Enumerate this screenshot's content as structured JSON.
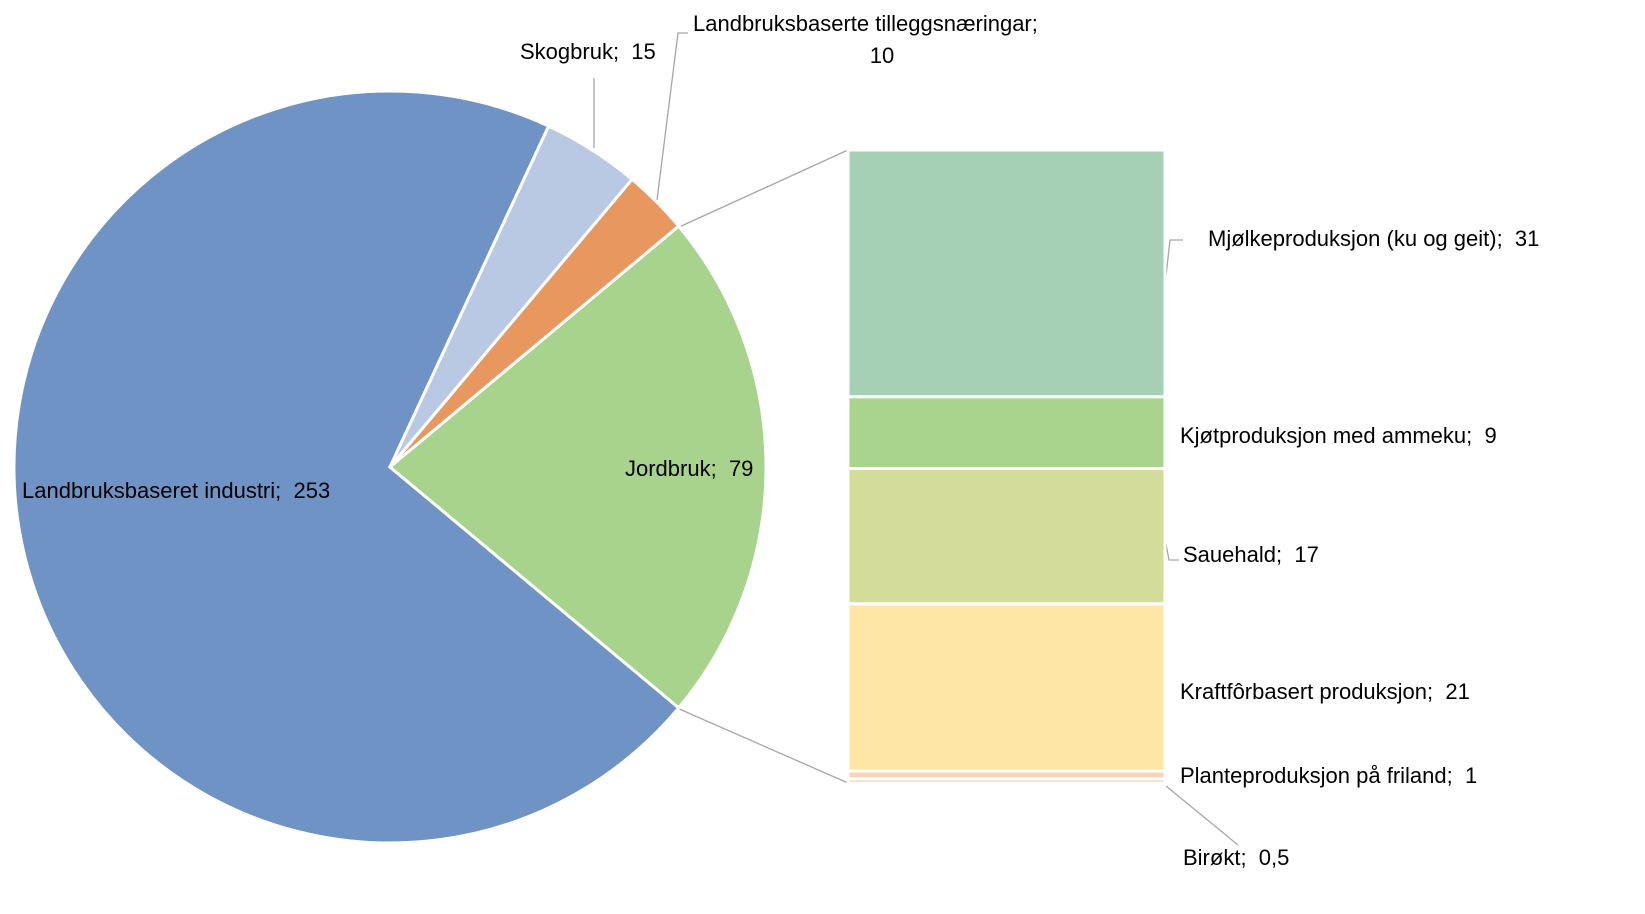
{
  "chart_data": {
    "type": "bar-of-pie",
    "separator": ";  ",
    "pie": {
      "categories": [
        "Landbruksbaseret industri",
        "Skogbruk",
        "Landbruksbaserte tilleggsnæringar",
        "Jordbruk"
      ],
      "values": [
        253,
        15,
        10,
        79
      ],
      "colors": [
        "#7093c6",
        "#b9c9e3",
        "#e8975e",
        "#a8d38c"
      ]
    },
    "bar": {
      "categories": [
        "Mjølkeproduksjon (ku og geit)",
        "Kjøtproduksjon med ammeku",
        "Sauehald",
        "Kraftfôrbasert produksjon",
        "Planteproduksjon på friland",
        "Birøkt"
      ],
      "values": [
        31,
        9,
        17,
        21,
        1,
        0.5
      ],
      "value_labels": [
        "31",
        "9",
        "17",
        "21",
        "1",
        "0,5"
      ],
      "colors": [
        "#a6d0b6",
        "#a9d48d",
        "#d3dc98",
        "#fee6a6",
        "#f6d6b8",
        "#f1c6a7"
      ]
    }
  }
}
